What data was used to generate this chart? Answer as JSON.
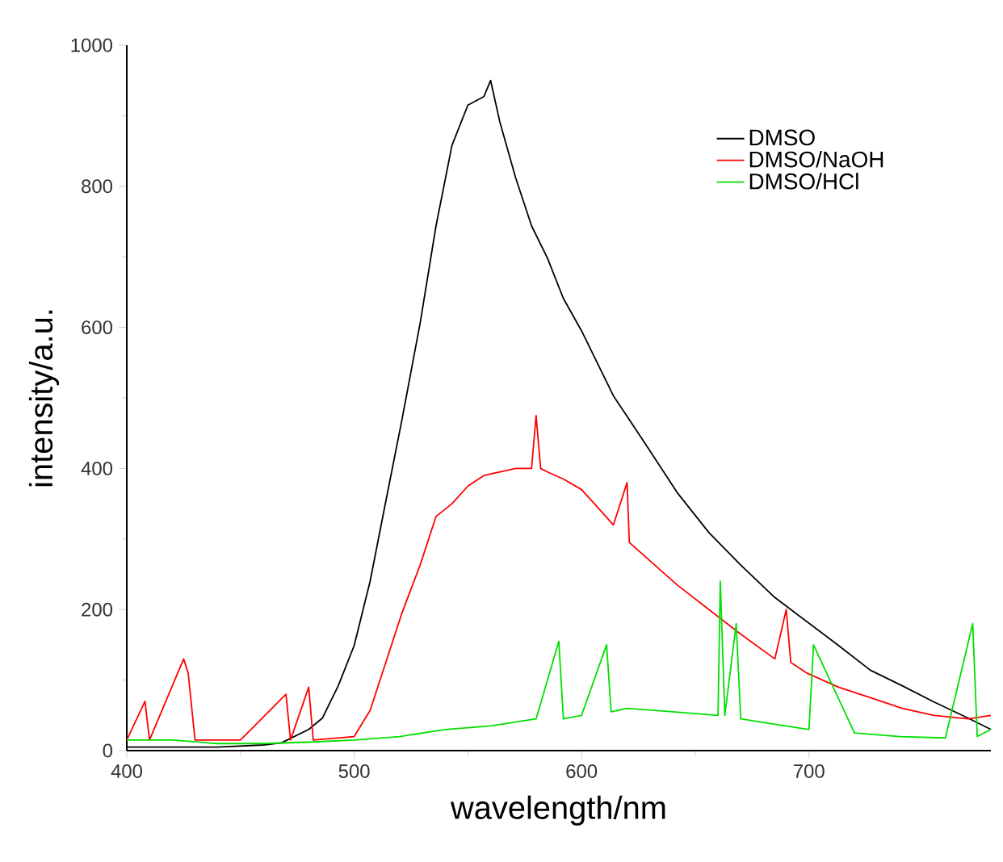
{
  "chart_data": {
    "type": "line",
    "xlabel": "wavelength/nm",
    "ylabel": "intensity/a.u.",
    "xlim": [
      400,
      780
    ],
    "xticks": [
      400,
      500,
      600,
      700
    ],
    "ylim": [
      0,
      1000
    ],
    "yticks": [
      0,
      200,
      400,
      600,
      800,
      1000
    ],
    "grid": false,
    "legend": "top right",
    "marker": "none",
    "line_style": "solid",
    "series": [
      {
        "name": "DMSO",
        "color": "#000000",
        "x": [
          400,
          420,
          440,
          460,
          468,
          480,
          486,
          493,
          500,
          507,
          514,
          521,
          529,
          536,
          543,
          550,
          557,
          560,
          564,
          571,
          578,
          585,
          592,
          600,
          607,
          614,
          621,
          628,
          642,
          656,
          670,
          685,
          699,
          713,
          727,
          741,
          755,
          770,
          780
        ],
        "values": [
          5,
          5,
          5,
          8,
          11,
          30,
          46,
          92,
          149,
          240,
          355,
          469,
          606,
          744,
          858,
          915,
          927,
          950,
          892,
          812,
          744,
          698,
          641,
          595,
          549,
          503,
          469,
          435,
          366,
          309,
          263,
          217,
          183,
          149,
          114,
          92,
          69,
          46,
          30
        ]
      },
      {
        "name": "DMSO/NaOH",
        "color": "#ff0000",
        "x": [
          400,
          408,
          410,
          425,
          427,
          430,
          450,
          470,
          472,
          480,
          482,
          500,
          507,
          514,
          521,
          529,
          536,
          543,
          550,
          557,
          564,
          571,
          578,
          580,
          582,
          585,
          592,
          600,
          607,
          614,
          620,
          621,
          628,
          642,
          656,
          670,
          685,
          690,
          692,
          699,
          713,
          727,
          741,
          755,
          770,
          780
        ],
        "values": [
          15,
          70,
          15,
          130,
          110,
          15,
          15,
          80,
          15,
          90,
          15,
          20,
          57,
          126,
          195,
          263,
          332,
          350,
          375,
          390,
          395,
          400,
          400,
          475,
          400,
          395,
          385,
          370,
          345,
          320,
          380,
          295,
          275,
          235,
          200,
          165,
          130,
          200,
          125,
          110,
          90,
          75,
          60,
          50,
          45,
          50
        ]
      },
      {
        "name": "DMSO/HCl",
        "color": "#00e000",
        "x": [
          400,
          420,
          440,
          460,
          480,
          500,
          520,
          540,
          560,
          580,
          590,
          592,
          600,
          611,
          613,
          620,
          640,
          660,
          661,
          663,
          668,
          670,
          680,
          700,
          702,
          720,
          740,
          760,
          772,
          774,
          780
        ],
        "values": [
          15,
          15,
          10,
          10,
          12,
          15,
          20,
          30,
          35,
          45,
          155,
          45,
          50,
          150,
          55,
          60,
          55,
          50,
          240,
          50,
          180,
          45,
          40,
          30,
          150,
          25,
          20,
          18,
          180,
          20,
          30
        ]
      }
    ]
  }
}
